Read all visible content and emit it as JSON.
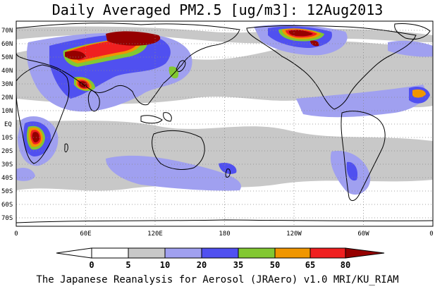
{
  "title": "Daily Averaged PM2.5 [ug/m3]: 12Aug2013",
  "footer": "The Japanese Reanalysis for Aerosol (JRAero) v1.0 MRI/KU_RIAM",
  "map": {
    "lat_labels": [
      "70N",
      "60N",
      "50N",
      "40N",
      "30N",
      "20N",
      "10N",
      "EQ",
      "10S",
      "20S",
      "30S",
      "40S",
      "50S",
      "60S",
      "70S"
    ],
    "lon_labels": [
      "0",
      "60E",
      "120E",
      "180",
      "120W",
      "60W",
      "0"
    ],
    "land_color": "#ffffff",
    "coast_color": "#000000",
    "grid_style": "dotted"
  },
  "colorbar": {
    "ticks": [
      "0",
      "5",
      "10",
      "20",
      "35",
      "50",
      "65",
      "80"
    ],
    "bins": [
      {
        "range": "<0",
        "color": "#ffffff"
      },
      {
        "range": "0-5",
        "color": "#ffffff"
      },
      {
        "range": "5-10",
        "color": "#c8c8c8"
      },
      {
        "range": "10-20",
        "color": "#a0a0f0"
      },
      {
        "range": "20-35",
        "color": "#5050f0"
      },
      {
        "range": "35-50",
        "color": "#82c832"
      },
      {
        "range": "50-65",
        "color": "#f09600"
      },
      {
        "range": "65-80",
        "color": "#f02020"
      },
      {
        "range": ">80",
        "color": "#960000"
      }
    ]
  }
}
